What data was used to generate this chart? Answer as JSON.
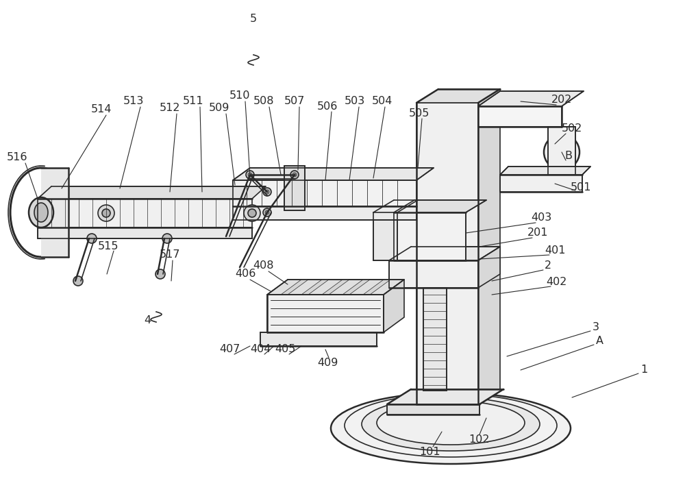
{
  "bg_color": "#ffffff",
  "line_color": "#2a2a2a",
  "fig_width": 10.0,
  "fig_height": 7.18
}
